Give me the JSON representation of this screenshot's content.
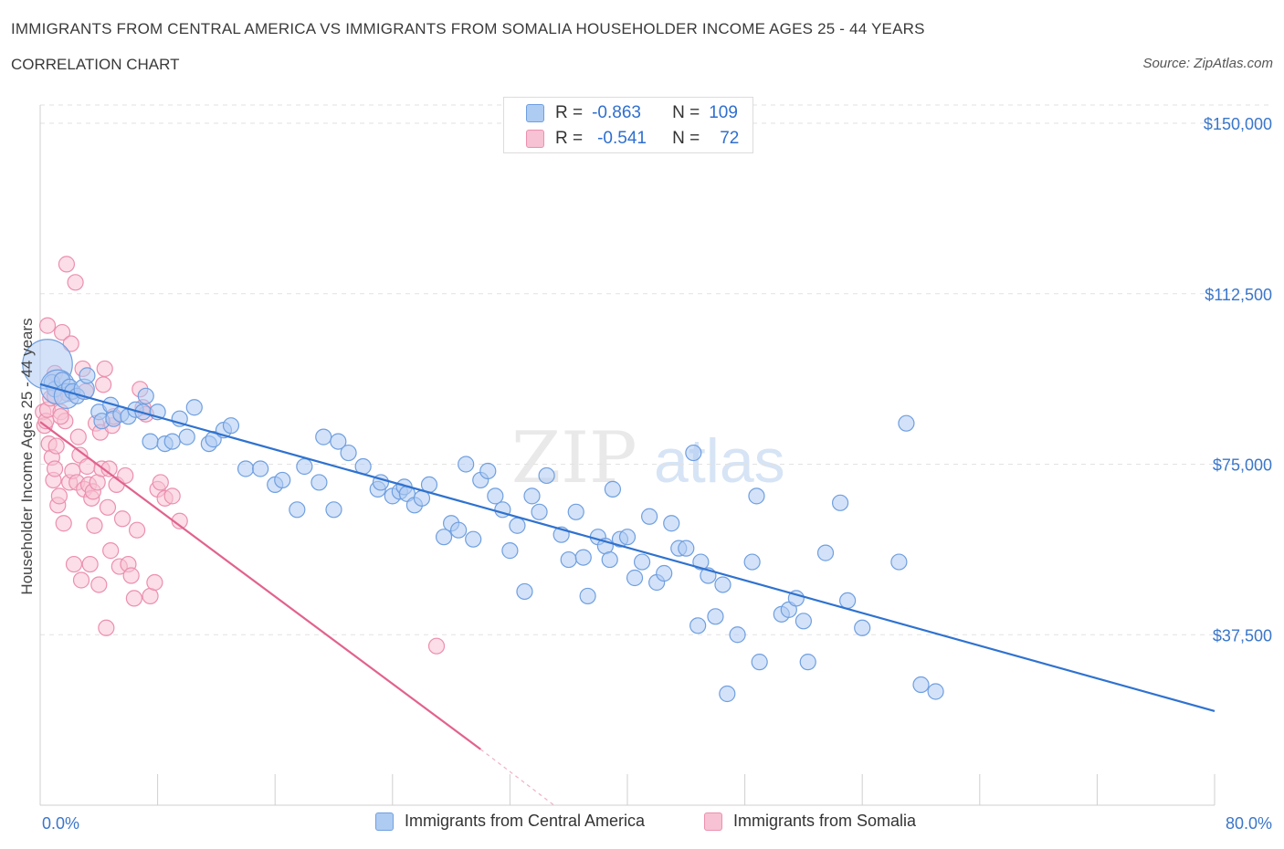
{
  "header": {
    "title": "IMMIGRANTS FROM CENTRAL AMERICA VS IMMIGRANTS FROM SOMALIA HOUSEHOLDER INCOME AGES 25 - 44 YEARS",
    "subtitle": "CORRELATION CHART",
    "source": "Source: ZipAtlas.com"
  },
  "watermark": "ZIPatlas",
  "stats": [
    {
      "r_label": "R =",
      "r_value": "-0.863",
      "n_label": "N =",
      "n_value": "109"
    },
    {
      "r_label": "R =",
      "r_value": "-0.541",
      "n_label": "N =",
      "n_value": "72"
    }
  ],
  "legend": [
    {
      "label": "Immigrants from Central America"
    },
    {
      "label": "Immigrants from Somalia"
    }
  ],
  "colors": {
    "blue_fill": "#aecbf2",
    "blue_stroke": "#6f9fe0",
    "blue_line": "#2f72cf",
    "pink_fill": "#f7c2d3",
    "pink_stroke": "#ec8fae",
    "pink_line": "#e2628e",
    "grid": "#e2e2e2",
    "axis_text": "#3a76c9"
  },
  "chart_data": {
    "type": "scatter",
    "title": "IMMIGRANTS FROM CENTRAL AMERICA VS IMMIGRANTS FROM SOMALIA HOUSEHOLDER INCOME AGES 25 - 44 YEARS",
    "xlabel": "",
    "ylabel": "Householder Income Ages 25 - 44 years",
    "xlim": [
      0,
      80
    ],
    "ylim": [
      0,
      150000
    ],
    "x_tick_labels": [
      "0.0%",
      "80.0%"
    ],
    "y_ticks": [
      37500,
      75000,
      112500,
      150000
    ],
    "y_tick_labels": [
      "$37,500",
      "$75,000",
      "$112,500",
      "$150,000"
    ],
    "grid": true,
    "legend_position": "bottom",
    "series": [
      {
        "name": "Immigrants from Central America",
        "r": -0.863,
        "n": 109,
        "trend": {
          "x": [
            0,
            80
          ],
          "y": [
            92600,
            20700
          ]
        },
        "points": [
          [
            0.5,
            97000
          ],
          [
            0.8,
            93000
          ],
          [
            1.0,
            91500
          ],
          [
            1.2,
            92000
          ],
          [
            1.5,
            93500
          ],
          [
            1.8,
            90000
          ],
          [
            2.0,
            92000
          ],
          [
            2.2,
            91000
          ],
          [
            2.5,
            90000
          ],
          [
            3.0,
            91500
          ],
          [
            3.2,
            94500
          ],
          [
            4.0,
            86500
          ],
          [
            4.2,
            84500
          ],
          [
            4.8,
            88000
          ],
          [
            5.0,
            85000
          ],
          [
            5.5,
            86000
          ],
          [
            6.0,
            85500
          ],
          [
            6.5,
            87000
          ],
          [
            7.0,
            86500
          ],
          [
            7.2,
            90000
          ],
          [
            7.5,
            80000
          ],
          [
            8.0,
            86500
          ],
          [
            8.5,
            79500
          ],
          [
            9.0,
            80000
          ],
          [
            9.5,
            85000
          ],
          [
            10.0,
            81000
          ],
          [
            10.5,
            87500
          ],
          [
            11.5,
            79500
          ],
          [
            11.8,
            80500
          ],
          [
            12.5,
            82500
          ],
          [
            13.0,
            83500
          ],
          [
            14.0,
            74000
          ],
          [
            15.0,
            74000
          ],
          [
            16.0,
            70500
          ],
          [
            16.5,
            71500
          ],
          [
            17.5,
            65000
          ],
          [
            18.0,
            74500
          ],
          [
            19.0,
            71000
          ],
          [
            19.3,
            81000
          ],
          [
            20.0,
            65000
          ],
          [
            20.3,
            80000
          ],
          [
            21.0,
            77500
          ],
          [
            22.0,
            74500
          ],
          [
            23.0,
            69500
          ],
          [
            23.2,
            71000
          ],
          [
            24.0,
            68000
          ],
          [
            24.5,
            69000
          ],
          [
            24.8,
            70000
          ],
          [
            25.0,
            68500
          ],
          [
            25.5,
            66000
          ],
          [
            26.0,
            67500
          ],
          [
            26.5,
            70500
          ],
          [
            27.5,
            59000
          ],
          [
            28.0,
            62000
          ],
          [
            28.5,
            60500
          ],
          [
            29.0,
            75000
          ],
          [
            29.5,
            58500
          ],
          [
            30.0,
            71500
          ],
          [
            30.5,
            73500
          ],
          [
            31.0,
            68000
          ],
          [
            31.5,
            65000
          ],
          [
            32.0,
            56000
          ],
          [
            32.5,
            61500
          ],
          [
            33.0,
            47000
          ],
          [
            33.5,
            68000
          ],
          [
            34.0,
            64500
          ],
          [
            34.5,
            72500
          ],
          [
            35.5,
            59500
          ],
          [
            36.0,
            54000
          ],
          [
            36.5,
            64500
          ],
          [
            37.0,
            54500
          ],
          [
            37.3,
            46000
          ],
          [
            38.0,
            59000
          ],
          [
            38.5,
            57000
          ],
          [
            38.8,
            54000
          ],
          [
            39.0,
            69500
          ],
          [
            39.5,
            58500
          ],
          [
            40.0,
            59000
          ],
          [
            40.5,
            50000
          ],
          [
            41.0,
            53500
          ],
          [
            41.5,
            63500
          ],
          [
            42.0,
            49000
          ],
          [
            42.5,
            51000
          ],
          [
            43.0,
            62000
          ],
          [
            43.5,
            56500
          ],
          [
            44.0,
            56500
          ],
          [
            44.5,
            77500
          ],
          [
            44.8,
            39500
          ],
          [
            45.0,
            53500
          ],
          [
            45.5,
            50500
          ],
          [
            46.0,
            41500
          ],
          [
            46.5,
            48500
          ],
          [
            46.8,
            24500
          ],
          [
            47.5,
            37500
          ],
          [
            48.5,
            53500
          ],
          [
            48.8,
            68000
          ],
          [
            49.0,
            31500
          ],
          [
            50.5,
            42000
          ],
          [
            51.0,
            43000
          ],
          [
            51.5,
            45500
          ],
          [
            52.0,
            40500
          ],
          [
            52.3,
            31500
          ],
          [
            53.5,
            55500
          ],
          [
            54.5,
            66500
          ],
          [
            55.0,
            45000
          ],
          [
            56.0,
            39000
          ],
          [
            58.5,
            53500
          ],
          [
            59.0,
            84000
          ],
          [
            60.0,
            26500
          ],
          [
            61.0,
            25000
          ]
        ],
        "point_sizes": [
          [
            0.5,
            97000,
            3.2
          ],
          [
            1.2,
            92000,
            2.2
          ],
          [
            1.8,
            90000,
            1.6
          ],
          [
            3.0,
            91500,
            1.3
          ]
        ]
      },
      {
        "name": "Immigrants from Somalia",
        "r": -0.541,
        "n": 72,
        "trend": {
          "x": [
            0,
            30
          ],
          "y": [
            84300,
            12300
          ]
        },
        "trend_dashed": {
          "x": [
            30,
            35
          ],
          "y": [
            12300,
            0
          ]
        },
        "points": [
          [
            0.2,
            86500
          ],
          [
            0.3,
            83500
          ],
          [
            0.4,
            84500
          ],
          [
            0.5,
            87000
          ],
          [
            0.5,
            105500
          ],
          [
            0.6,
            79500
          ],
          [
            0.7,
            89500
          ],
          [
            0.8,
            76500
          ],
          [
            0.9,
            71500
          ],
          [
            1.0,
            90000
          ],
          [
            1.0,
            74000
          ],
          [
            1.1,
            79000
          ],
          [
            1.2,
            66000
          ],
          [
            1.3,
            68000
          ],
          [
            1.4,
            86500
          ],
          [
            1.5,
            104000
          ],
          [
            1.6,
            62000
          ],
          [
            1.7,
            84500
          ],
          [
            1.8,
            119000
          ],
          [
            1.9,
            90500
          ],
          [
            2.0,
            71000
          ],
          [
            2.1,
            101500
          ],
          [
            2.2,
            73500
          ],
          [
            2.3,
            53000
          ],
          [
            2.4,
            115000
          ],
          [
            2.5,
            71000
          ],
          [
            2.6,
            81000
          ],
          [
            2.7,
            77000
          ],
          [
            2.8,
            49500
          ],
          [
            2.9,
            96000
          ],
          [
            3.0,
            69500
          ],
          [
            3.1,
            91000
          ],
          [
            3.2,
            74500
          ],
          [
            3.3,
            70500
          ],
          [
            3.4,
            53000
          ],
          [
            3.5,
            67500
          ],
          [
            3.6,
            69000
          ],
          [
            3.7,
            61500
          ],
          [
            3.8,
            84000
          ],
          [
            3.9,
            71000
          ],
          [
            4.0,
            48500
          ],
          [
            4.1,
            82000
          ],
          [
            4.2,
            74000
          ],
          [
            4.3,
            92500
          ],
          [
            4.4,
            96000
          ],
          [
            4.5,
            39000
          ],
          [
            4.6,
            65500
          ],
          [
            4.7,
            74000
          ],
          [
            4.8,
            56000
          ],
          [
            4.9,
            83500
          ],
          [
            5.0,
            85500
          ],
          [
            5.2,
            70500
          ],
          [
            5.4,
            52500
          ],
          [
            5.6,
            63000
          ],
          [
            5.8,
            72500
          ],
          [
            6.0,
            53000
          ],
          [
            6.2,
            50500
          ],
          [
            6.4,
            45500
          ],
          [
            6.6,
            60500
          ],
          [
            6.8,
            91500
          ],
          [
            7.0,
            87500
          ],
          [
            7.2,
            86000
          ],
          [
            7.5,
            46000
          ],
          [
            7.8,
            49000
          ],
          [
            8.0,
            69500
          ],
          [
            8.2,
            71000
          ],
          [
            8.5,
            67500
          ],
          [
            9.0,
            68000
          ],
          [
            9.5,
            62500
          ],
          [
            1.0,
            95000
          ],
          [
            1.4,
            85500
          ],
          [
            27.0,
            35000
          ]
        ]
      }
    ]
  }
}
